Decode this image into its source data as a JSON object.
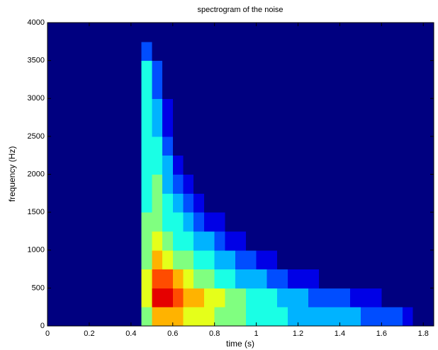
{
  "chart_data": {
    "type": "heatmap",
    "title": "spectrogram of the noise",
    "xlabel": "time (s)",
    "ylabel": "frequency (Hz)",
    "colormap": "jet",
    "clim": [
      0,
      10
    ],
    "x_bins": [
      0,
      0.05,
      0.1,
      0.15,
      0.2,
      0.25,
      0.3,
      0.35,
      0.4,
      0.45,
      0.5,
      0.55,
      0.6,
      0.65,
      0.7,
      0.75,
      0.8,
      0.85,
      0.9,
      0.95,
      1,
      1.05,
      1.1,
      1.15,
      1.2,
      1.25,
      1.3,
      1.35,
      1.4,
      1.45,
      1.5,
      1.55,
      1.6,
      1.65,
      1.7,
      1.75,
      1.8,
      1.85
    ],
    "y_bins": [
      0,
      250,
      500,
      750,
      1000,
      1250,
      1500,
      1750,
      2000,
      2250,
      2500,
      2750,
      3000,
      3250,
      3500,
      3750,
      4000
    ],
    "values": [
      [
        0,
        0,
        0,
        0,
        0,
        0,
        0,
        0,
        0,
        5,
        7,
        7,
        7,
        6,
        6,
        6,
        5,
        5,
        5,
        4,
        4,
        4,
        4,
        3,
        3,
        3,
        3,
        3,
        3,
        3,
        2,
        2,
        2,
        2,
        1,
        0,
        0
      ],
      [
        0,
        0,
        0,
        0,
        0,
        0,
        0,
        0,
        0,
        6,
        9,
        9,
        8,
        7,
        7,
        6,
        6,
        5,
        5,
        4,
        4,
        4,
        3,
        3,
        3,
        2,
        2,
        2,
        2,
        1,
        1,
        1,
        0,
        0,
        0,
        0,
        0
      ],
      [
        0,
        0,
        0,
        0,
        0,
        0,
        0,
        0,
        0,
        6,
        8,
        8,
        7,
        6,
        5,
        5,
        4,
        4,
        3,
        3,
        3,
        2,
        2,
        1,
        1,
        1,
        0,
        0,
        0,
        0,
        0,
        0,
        0,
        0,
        0,
        0,
        0
      ],
      [
        0,
        0,
        0,
        0,
        0,
        0,
        0,
        0,
        0,
        5,
        7,
        6,
        5,
        5,
        4,
        4,
        3,
        3,
        2,
        2,
        1,
        1,
        0,
        0,
        0,
        0,
        0,
        0,
        0,
        0,
        0,
        0,
        0,
        0,
        0,
        0,
        0
      ],
      [
        0,
        0,
        0,
        0,
        0,
        0,
        0,
        0,
        0,
        5,
        6,
        5,
        4,
        4,
        3,
        3,
        2,
        1,
        1,
        0,
        0,
        0,
        0,
        0,
        0,
        0,
        0,
        0,
        0,
        0,
        0,
        0,
        0,
        0,
        0,
        0,
        0
      ],
      [
        0,
        0,
        0,
        0,
        0,
        0,
        0,
        0,
        0,
        5,
        5,
        4,
        4,
        3,
        2,
        1,
        1,
        0,
        0,
        0,
        0,
        0,
        0,
        0,
        0,
        0,
        0,
        0,
        0,
        0,
        0,
        0,
        0,
        0,
        0,
        0,
        0
      ],
      [
        0,
        0,
        0,
        0,
        0,
        0,
        0,
        0,
        0,
        4,
        5,
        4,
        3,
        2,
        1,
        0,
        0,
        0,
        0,
        0,
        0,
        0,
        0,
        0,
        0,
        0,
        0,
        0,
        0,
        0,
        0,
        0,
        0,
        0,
        0,
        0,
        0
      ],
      [
        0,
        0,
        0,
        0,
        0,
        0,
        0,
        0,
        0,
        4,
        5,
        3,
        2,
        1,
        0,
        0,
        0,
        0,
        0,
        0,
        0,
        0,
        0,
        0,
        0,
        0,
        0,
        0,
        0,
        0,
        0,
        0,
        0,
        0,
        0,
        0,
        0
      ],
      [
        0,
        0,
        0,
        0,
        0,
        0,
        0,
        0,
        0,
        4,
        4,
        3,
        1,
        0,
        0,
        0,
        0,
        0,
        0,
        0,
        0,
        0,
        0,
        0,
        0,
        0,
        0,
        0,
        0,
        0,
        0,
        0,
        0,
        0,
        0,
        0,
        0
      ],
      [
        0,
        0,
        0,
        0,
        0,
        0,
        0,
        0,
        0,
        4,
        4,
        2,
        0,
        0,
        0,
        0,
        0,
        0,
        0,
        0,
        0,
        0,
        0,
        0,
        0,
        0,
        0,
        0,
        0,
        0,
        0,
        0,
        0,
        0,
        0,
        0,
        0
      ],
      [
        0,
        0,
        0,
        0,
        0,
        0,
        0,
        0,
        0,
        4,
        3,
        1,
        0,
        0,
        0,
        0,
        0,
        0,
        0,
        0,
        0,
        0,
        0,
        0,
        0,
        0,
        0,
        0,
        0,
        0,
        0,
        0,
        0,
        0,
        0,
        0,
        0
      ],
      [
        0,
        0,
        0,
        0,
        0,
        0,
        0,
        0,
        0,
        4,
        3,
        1,
        0,
        0,
        0,
        0,
        0,
        0,
        0,
        0,
        0,
        0,
        0,
        0,
        0,
        0,
        0,
        0,
        0,
        0,
        0,
        0,
        0,
        0,
        0,
        0,
        0
      ],
      [
        0,
        0,
        0,
        0,
        0,
        0,
        0,
        0,
        0,
        4,
        2,
        0,
        0,
        0,
        0,
        0,
        0,
        0,
        0,
        0,
        0,
        0,
        0,
        0,
        0,
        0,
        0,
        0,
        0,
        0,
        0,
        0,
        0,
        0,
        0,
        0,
        0
      ],
      [
        0,
        0,
        0,
        0,
        0,
        0,
        0,
        0,
        0,
        4,
        2,
        0,
        0,
        0,
        0,
        0,
        0,
        0,
        0,
        0,
        0,
        0,
        0,
        0,
        0,
        0,
        0,
        0,
        0,
        0,
        0,
        0,
        0,
        0,
        0,
        0,
        0
      ],
      [
        0,
        0,
        0,
        0,
        0,
        0,
        0,
        0,
        0,
        2,
        0,
        0,
        0,
        0,
        0,
        0,
        0,
        0,
        0,
        0,
        0,
        0,
        0,
        0,
        0,
        0,
        0,
        0,
        0,
        0,
        0,
        0,
        0,
        0,
        0,
        0,
        0
      ],
      [
        0,
        0,
        0,
        0,
        0,
        0,
        0,
        0,
        0,
        0,
        0,
        0,
        0,
        0,
        0,
        0,
        0,
        0,
        0,
        0,
        0,
        0,
        0,
        0,
        0,
        0,
        0,
        0,
        0,
        0,
        0,
        0,
        0,
        0,
        0,
        0,
        0
      ]
    ],
    "xlim": [
      0,
      1.85
    ],
    "ylim": [
      0,
      4000
    ],
    "xticks": [
      0,
      0.2,
      0.4,
      0.6,
      0.8,
      1,
      1.2,
      1.4,
      1.6,
      1.8
    ],
    "yticks": [
      0,
      500,
      1000,
      1500,
      2000,
      2500,
      3000,
      3500,
      4000
    ]
  }
}
